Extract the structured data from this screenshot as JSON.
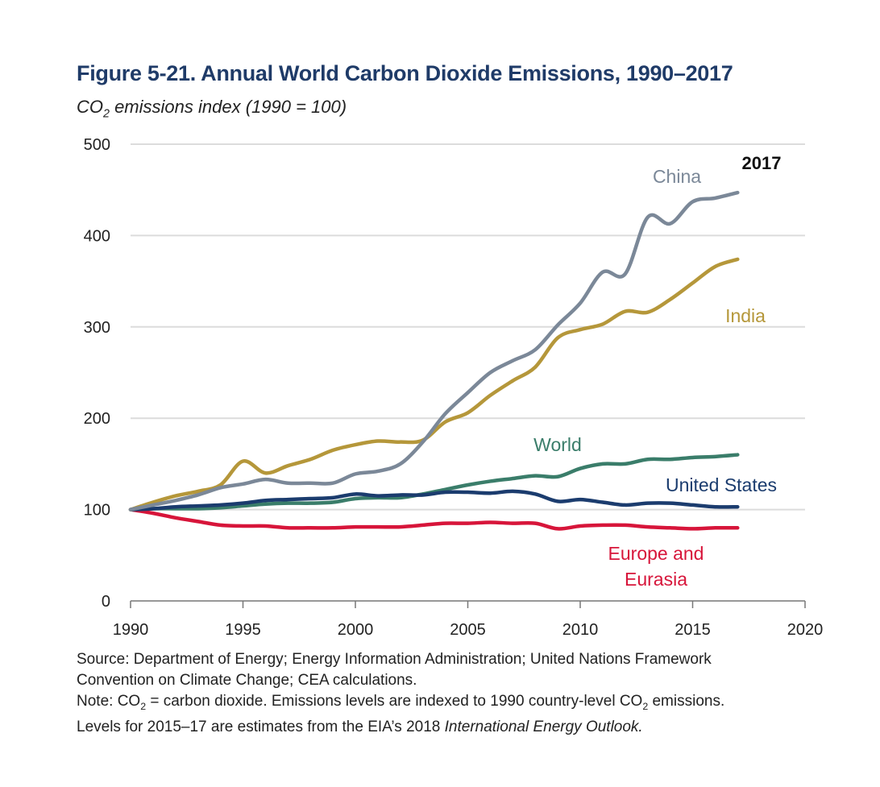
{
  "figure": {
    "title": "Figure 5-21. Annual World Carbon Dioxide Emissions, 1990–2017",
    "subtitle_pre": "CO",
    "subtitle_sub": "2",
    "subtitle_post": " emissions index (1990 = 100)"
  },
  "chart_data": {
    "type": "line",
    "title": "Figure 5-21. Annual World Carbon Dioxide Emissions, 1990–2017",
    "ylabel": "CO2 emissions index (1990 = 100)",
    "xlabel": "",
    "xlim": [
      1990,
      2020
    ],
    "ylim": [
      0,
      500
    ],
    "x_ticks": [
      "1990",
      "1995",
      "2000",
      "2005",
      "2010",
      "2015",
      "2020"
    ],
    "y_ticks": [
      "0",
      "100",
      "200",
      "300",
      "400",
      "500"
    ],
    "grid": true,
    "end_label": "2017",
    "x": [
      1990,
      1991,
      1992,
      1993,
      1994,
      1995,
      1996,
      1997,
      1998,
      1999,
      2000,
      2001,
      2002,
      2003,
      2004,
      2005,
      2006,
      2007,
      2008,
      2009,
      2010,
      2011,
      2012,
      2013,
      2014,
      2015,
      2016,
      2017
    ],
    "series": [
      {
        "name": "Europe and Eurasia",
        "label_lines": [
          "Europe and",
          "Eurasia"
        ],
        "color": "#d7153a",
        "values": [
          100,
          96,
          91,
          87,
          83,
          82,
          82,
          80,
          80,
          80,
          81,
          81,
          81,
          83,
          85,
          85,
          86,
          85,
          85,
          79,
          82,
          83,
          83,
          81,
          80,
          79,
          80,
          80
        ]
      },
      {
        "name": "World",
        "label_lines": [
          "World"
        ],
        "color": "#3a7d6a",
        "values": [
          100,
          101,
          101,
          101,
          102,
          104,
          106,
          107,
          107,
          108,
          112,
          113,
          113,
          117,
          122,
          127,
          131,
          134,
          137,
          136,
          145,
          150,
          150,
          155,
          155,
          157,
          158,
          160
        ]
      },
      {
        "name": "United States",
        "label_lines": [
          "United States"
        ],
        "color": "#1b3c6e",
        "values": [
          100,
          101,
          103,
          104,
          105,
          107,
          110,
          111,
          112,
          113,
          117,
          115,
          116,
          116,
          119,
          119,
          118,
          120,
          117,
          109,
          111,
          108,
          105,
          107,
          107,
          105,
          103,
          103
        ]
      },
      {
        "name": "India",
        "label_lines": [
          "India"
        ],
        "color": "#b5973a",
        "values": [
          100,
          108,
          115,
          120,
          127,
          153,
          140,
          148,
          155,
          165,
          171,
          175,
          174,
          176,
          196,
          206,
          225,
          241,
          256,
          288,
          297,
          303,
          317,
          316,
          330,
          348,
          366,
          374
        ]
      },
      {
        "name": "China",
        "label_lines": [
          "China"
        ],
        "color": "#7b8898",
        "values": [
          100,
          105,
          110,
          116,
          124,
          128,
          133,
          129,
          129,
          129,
          139,
          142,
          150,
          174,
          205,
          228,
          250,
          263,
          275,
          302,
          326,
          360,
          358,
          420,
          413,
          437,
          441,
          447
        ]
      }
    ]
  },
  "notes": {
    "source_line1": "Source: Department of Energy; Energy Information Administration; United Nations Framework",
    "source_line2": "Convention on Climate Change; CEA calculations.",
    "note_a": "Note: CO",
    "note_sub1": "2",
    "note_b": " =  carbon dioxide. Emissions levels are indexed to 1990 country-level CO",
    "note_sub2": "2",
    "note_c": "  emissions.",
    "levels_a": "Levels for 2015–17 are estimates from the EIA’s 2018 ",
    "levels_italic": "International Energy Outlook.",
    "levels_b": ""
  }
}
